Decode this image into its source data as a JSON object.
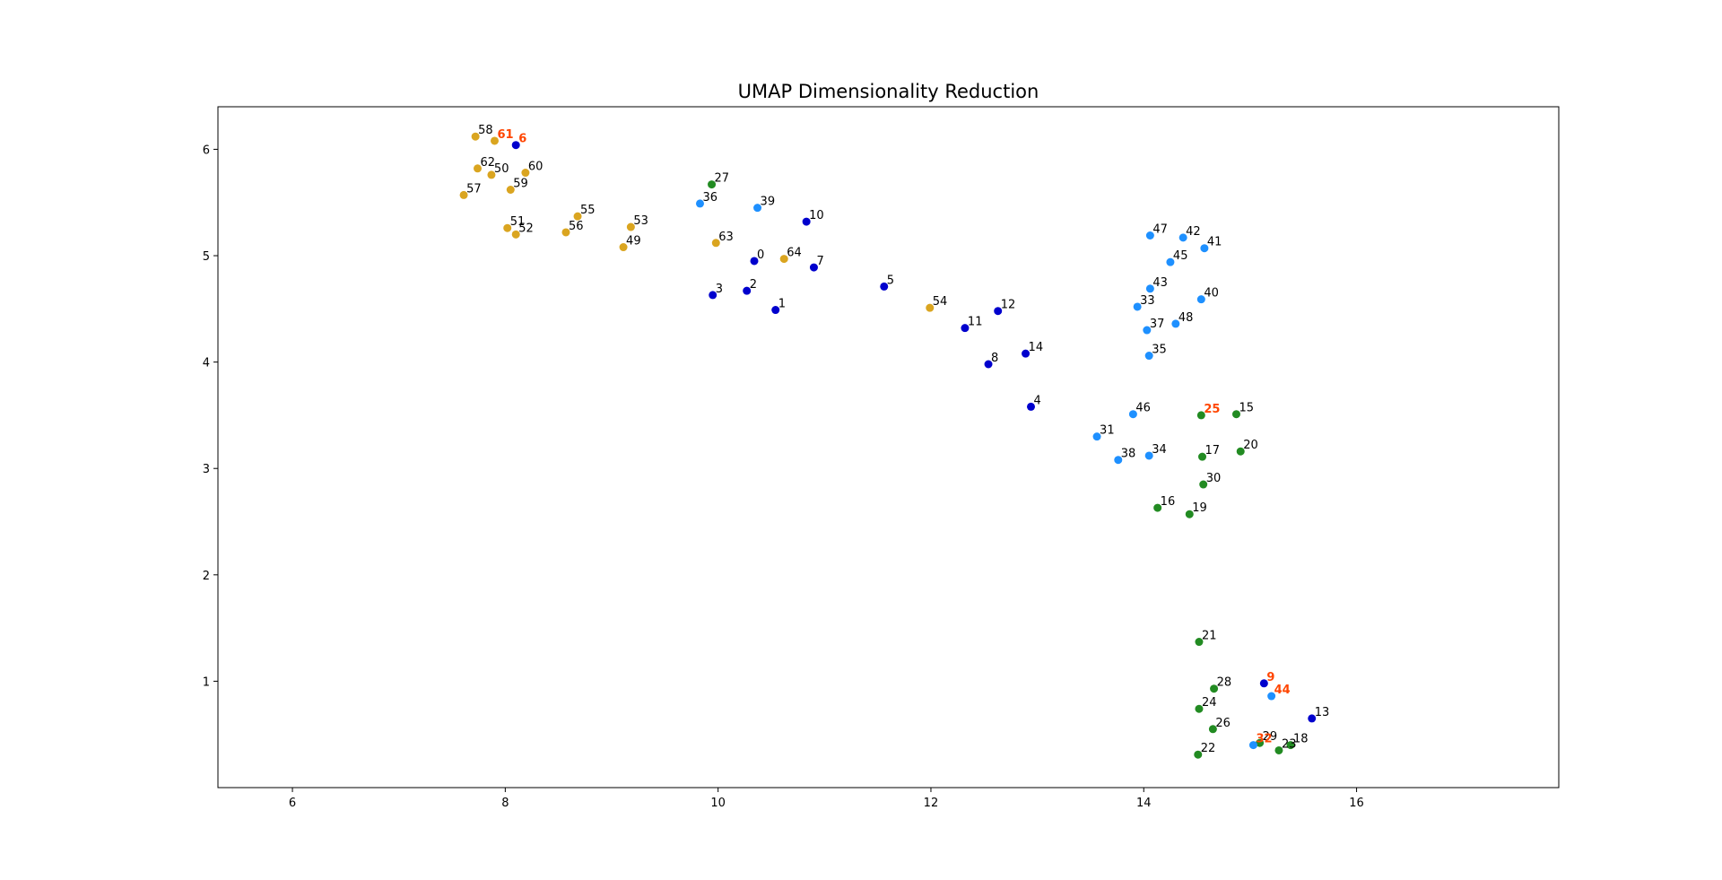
{
  "chart_data": {
    "type": "scatter",
    "title": "UMAP Dimensionality Reduction",
    "xlabel": "",
    "ylabel": "",
    "xlim": [
      5.3,
      17.9
    ],
    "ylim": [
      0.0,
      6.4
    ],
    "xticks": [
      6,
      8,
      10,
      12,
      14,
      16
    ],
    "yticks": [
      1,
      2,
      3,
      4,
      5,
      6
    ],
    "grid": false,
    "colors": {
      "orange": "#daa520",
      "darkblue": "#0000cd",
      "green": "#228b22",
      "lightblue": "#1e90ff",
      "highlight_text": "#ff4500"
    },
    "points": [
      {
        "label": "0",
        "x": 10.34,
        "y": 4.95,
        "color": "darkblue",
        "highlight": false
      },
      {
        "label": "1",
        "x": 10.54,
        "y": 4.49,
        "color": "darkblue",
        "highlight": false
      },
      {
        "label": "2",
        "x": 10.27,
        "y": 4.67,
        "color": "darkblue",
        "highlight": false
      },
      {
        "label": "3",
        "x": 9.95,
        "y": 4.63,
        "color": "darkblue",
        "highlight": false
      },
      {
        "label": "4",
        "x": 12.94,
        "y": 3.58,
        "color": "darkblue",
        "highlight": false
      },
      {
        "label": "5",
        "x": 11.56,
        "y": 4.71,
        "color": "darkblue",
        "highlight": false
      },
      {
        "label": "6",
        "x": 8.1,
        "y": 6.04,
        "color": "darkblue",
        "highlight": true
      },
      {
        "label": "7",
        "x": 10.9,
        "y": 4.89,
        "color": "darkblue",
        "highlight": false
      },
      {
        "label": "8",
        "x": 12.54,
        "y": 3.98,
        "color": "darkblue",
        "highlight": false
      },
      {
        "label": "9",
        "x": 15.13,
        "y": 0.98,
        "color": "darkblue",
        "highlight": true
      },
      {
        "label": "10",
        "x": 10.83,
        "y": 5.32,
        "color": "darkblue",
        "highlight": false
      },
      {
        "label": "11",
        "x": 12.32,
        "y": 4.32,
        "color": "darkblue",
        "highlight": false
      },
      {
        "label": "12",
        "x": 12.63,
        "y": 4.48,
        "color": "darkblue",
        "highlight": false
      },
      {
        "label": "13",
        "x": 15.58,
        "y": 0.65,
        "color": "darkblue",
        "highlight": false
      },
      {
        "label": "14",
        "x": 12.89,
        "y": 4.08,
        "color": "darkblue",
        "highlight": false
      },
      {
        "label": "15",
        "x": 14.87,
        "y": 3.51,
        "color": "green",
        "highlight": false
      },
      {
        "label": "16",
        "x": 14.13,
        "y": 2.63,
        "color": "green",
        "highlight": false
      },
      {
        "label": "17",
        "x": 14.55,
        "y": 3.11,
        "color": "green",
        "highlight": false
      },
      {
        "label": "18",
        "x": 15.38,
        "y": 0.4,
        "color": "green",
        "highlight": false
      },
      {
        "label": "19",
        "x": 14.43,
        "y": 2.57,
        "color": "green",
        "highlight": false
      },
      {
        "label": "20",
        "x": 14.91,
        "y": 3.16,
        "color": "green",
        "highlight": false
      },
      {
        "label": "21",
        "x": 14.52,
        "y": 1.37,
        "color": "green",
        "highlight": false
      },
      {
        "label": "22",
        "x": 14.51,
        "y": 0.31,
        "color": "green",
        "highlight": false
      },
      {
        "label": "23",
        "x": 15.27,
        "y": 0.35,
        "color": "green",
        "highlight": false
      },
      {
        "label": "24",
        "x": 14.52,
        "y": 0.74,
        "color": "green",
        "highlight": false
      },
      {
        "label": "25",
        "x": 14.54,
        "y": 3.5,
        "color": "green",
        "highlight": true
      },
      {
        "label": "26",
        "x": 14.65,
        "y": 0.55,
        "color": "green",
        "highlight": false
      },
      {
        "label": "27",
        "x": 9.94,
        "y": 5.67,
        "color": "green",
        "highlight": false
      },
      {
        "label": "28",
        "x": 14.66,
        "y": 0.93,
        "color": "green",
        "highlight": false
      },
      {
        "label": "29",
        "x": 15.09,
        "y": 0.42,
        "color": "green",
        "highlight": false
      },
      {
        "label": "30",
        "x": 14.56,
        "y": 2.85,
        "color": "green",
        "highlight": false
      },
      {
        "label": "31",
        "x": 13.56,
        "y": 3.3,
        "color": "lightblue",
        "highlight": false
      },
      {
        "label": "32",
        "x": 15.03,
        "y": 0.4,
        "color": "lightblue",
        "highlight": true
      },
      {
        "label": "33",
        "x": 13.94,
        "y": 4.52,
        "color": "lightblue",
        "highlight": false
      },
      {
        "label": "34",
        "x": 14.05,
        "y": 3.12,
        "color": "lightblue",
        "highlight": false
      },
      {
        "label": "35",
        "x": 14.05,
        "y": 4.06,
        "color": "lightblue",
        "highlight": false
      },
      {
        "label": "36",
        "x": 9.83,
        "y": 5.49,
        "color": "lightblue",
        "highlight": false
      },
      {
        "label": "37",
        "x": 14.03,
        "y": 4.3,
        "color": "lightblue",
        "highlight": false
      },
      {
        "label": "38",
        "x": 13.76,
        "y": 3.08,
        "color": "lightblue",
        "highlight": false
      },
      {
        "label": "39",
        "x": 10.37,
        "y": 5.45,
        "color": "lightblue",
        "highlight": false
      },
      {
        "label": "40",
        "x": 14.54,
        "y": 4.59,
        "color": "lightblue",
        "highlight": false
      },
      {
        "label": "41",
        "x": 14.57,
        "y": 5.07,
        "color": "lightblue",
        "highlight": false
      },
      {
        "label": "42",
        "x": 14.37,
        "y": 5.17,
        "color": "lightblue",
        "highlight": false
      },
      {
        "label": "43",
        "x": 14.06,
        "y": 4.69,
        "color": "lightblue",
        "highlight": false
      },
      {
        "label": "44",
        "x": 15.2,
        "y": 0.86,
        "color": "lightblue",
        "highlight": true
      },
      {
        "label": "45",
        "x": 14.25,
        "y": 4.94,
        "color": "lightblue",
        "highlight": false
      },
      {
        "label": "46",
        "x": 13.9,
        "y": 3.51,
        "color": "lightblue",
        "highlight": false
      },
      {
        "label": "47",
        "x": 14.06,
        "y": 5.19,
        "color": "lightblue",
        "highlight": false
      },
      {
        "label": "48",
        "x": 14.3,
        "y": 4.36,
        "color": "lightblue",
        "highlight": false
      },
      {
        "label": "49",
        "x": 9.11,
        "y": 5.08,
        "color": "orange",
        "highlight": false
      },
      {
        "label": "50",
        "x": 7.87,
        "y": 5.76,
        "color": "orange",
        "highlight": false
      },
      {
        "label": "51",
        "x": 8.02,
        "y": 5.26,
        "color": "orange",
        "highlight": false
      },
      {
        "label": "52",
        "x": 8.1,
        "y": 5.2,
        "color": "orange",
        "highlight": false
      },
      {
        "label": "53",
        "x": 9.18,
        "y": 5.27,
        "color": "orange",
        "highlight": false
      },
      {
        "label": "54",
        "x": 11.99,
        "y": 4.51,
        "color": "orange",
        "highlight": false
      },
      {
        "label": "55",
        "x": 8.68,
        "y": 5.37,
        "color": "orange",
        "highlight": false
      },
      {
        "label": "56",
        "x": 8.57,
        "y": 5.22,
        "color": "orange",
        "highlight": false
      },
      {
        "label": "57",
        "x": 7.61,
        "y": 5.57,
        "color": "orange",
        "highlight": false
      },
      {
        "label": "58",
        "x": 7.72,
        "y": 6.12,
        "color": "orange",
        "highlight": false
      },
      {
        "label": "59",
        "x": 8.05,
        "y": 5.62,
        "color": "orange",
        "highlight": false
      },
      {
        "label": "60",
        "x": 8.19,
        "y": 5.78,
        "color": "orange",
        "highlight": false
      },
      {
        "label": "61",
        "x": 7.9,
        "y": 6.08,
        "color": "orange",
        "highlight": true
      },
      {
        "label": "62",
        "x": 7.74,
        "y": 5.82,
        "color": "orange",
        "highlight": false
      },
      {
        "label": "63",
        "x": 9.98,
        "y": 5.12,
        "color": "orange",
        "highlight": false
      },
      {
        "label": "64",
        "x": 10.62,
        "y": 4.97,
        "color": "orange",
        "highlight": false
      }
    ]
  }
}
